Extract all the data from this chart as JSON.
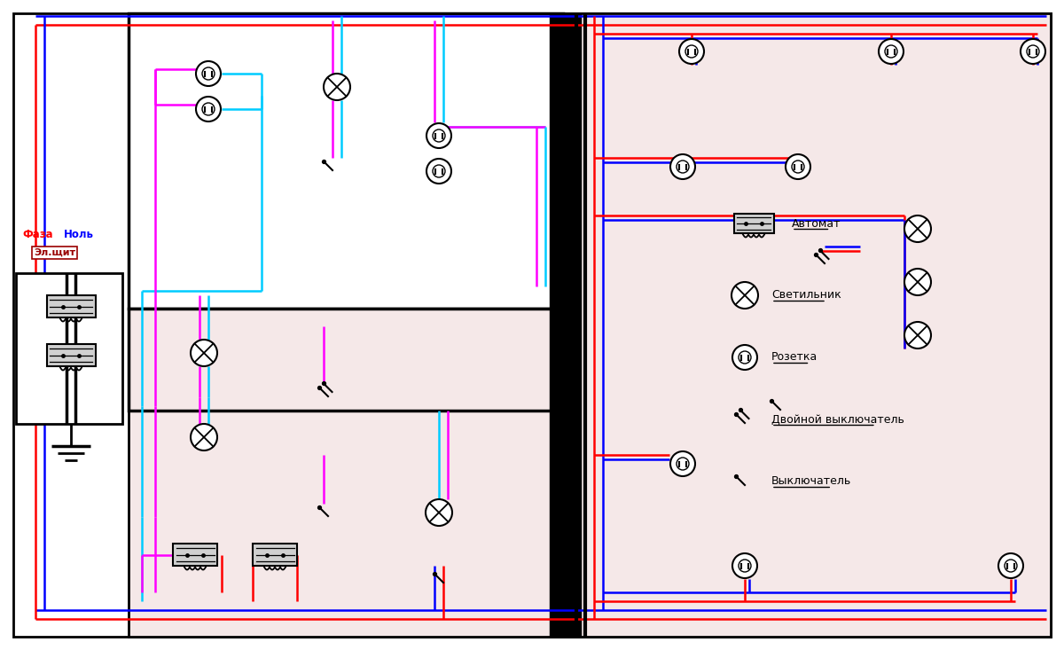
{
  "fig_width": 12.0,
  "fig_height": 7.33,
  "dpi": 100,
  "colors": {
    "red": "#ff0000",
    "blue": "#0000ff",
    "magenta": "#ff00ff",
    "cyan": "#00ccff",
    "black": "#000000",
    "dark_red": "#990000",
    "room_pink": "#f5e8e8",
    "white": "#ffffff",
    "lgray": "#d0d0d0"
  },
  "legend_labels": [
    "Автомат",
    "Светильник",
    "Розетка",
    "Двойной выключатель",
    "Выключатель"
  ],
  "label_faza": "Фаза",
  "label_nol": "Ноль",
  "label_elshit": "Эл.щит"
}
